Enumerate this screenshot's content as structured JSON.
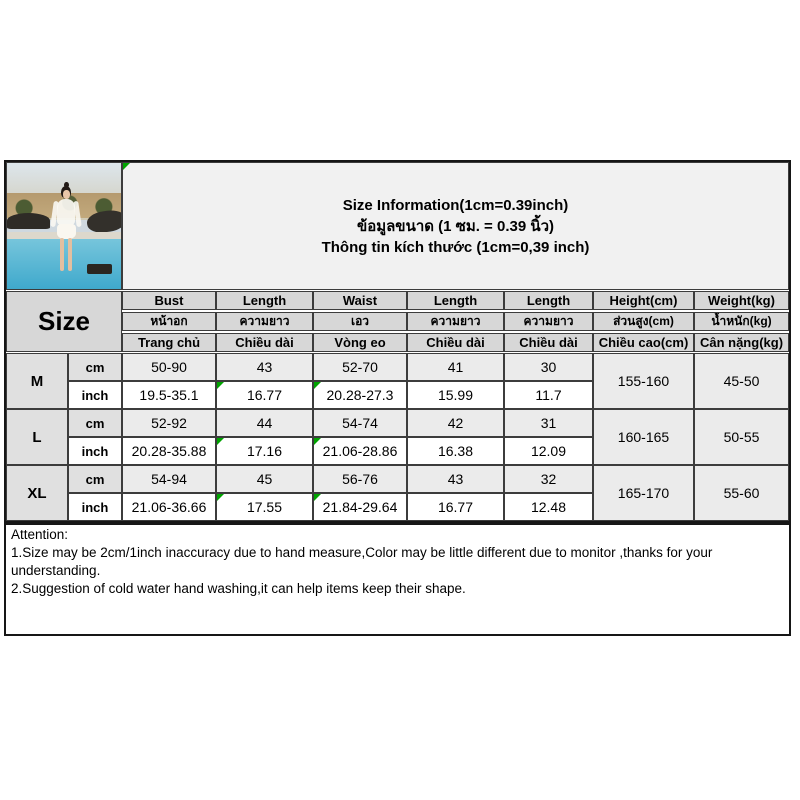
{
  "title": {
    "en": "Size Information(1cm=0.39inch)",
    "th": "ข้อมูลขนาด (1 ซม. = 0.39 นิ้ว)",
    "vi": "Thông tin kích thước (1cm=0,39 inch)"
  },
  "photo": {
    "description": "model wearing white sheer long-sleeve top and shorts standing beside resort pool"
  },
  "table": {
    "size_label": "Size",
    "units": [
      "cm",
      "inch"
    ],
    "columns": [
      {
        "en": "Bust",
        "th": "หน้าอก",
        "vi": "Trang chủ"
      },
      {
        "en": "Length",
        "th": "ความยาว",
        "vi": "Chiều dài"
      },
      {
        "en": "Waist",
        "th": "เอว",
        "vi": "Vòng eo"
      },
      {
        "en": "Length",
        "th": "ความยาว",
        "vi": "Chiều dài"
      },
      {
        "en": "Length",
        "th": "ความยาว",
        "vi": "Chiều dài"
      },
      {
        "en": "Height(cm)",
        "th": "ส่วนสูง(cm)",
        "vi": "Chiều cao(cm)"
      },
      {
        "en": "Weight(kg)",
        "th": "น้ำหนัก(kg)",
        "vi": "Cân nặng(kg)"
      }
    ],
    "rows": [
      {
        "size": "M",
        "cm": [
          "50-90",
          "43",
          "52-70",
          "41",
          "30"
        ],
        "inch": [
          "19.5-35.1",
          "16.77",
          "20.28-27.3",
          "15.99",
          "11.7"
        ],
        "height": "155-160",
        "weight": "45-50"
      },
      {
        "size": "L",
        "cm": [
          "52-92",
          "44",
          "54-74",
          "42",
          "31"
        ],
        "inch": [
          "20.28-35.88",
          "17.16",
          "21.06-28.86",
          "16.38",
          "12.09"
        ],
        "height": "160-165",
        "weight": "50-55"
      },
      {
        "size": "XL",
        "cm": [
          "54-94",
          "45",
          "56-76",
          "43",
          "32"
        ],
        "inch": [
          "21.06-36.66",
          "17.55",
          "21.84-29.64",
          "16.77",
          "12.48"
        ],
        "height": "165-170",
        "weight": "55-60"
      }
    ]
  },
  "attention": {
    "heading": "Attention:",
    "line1": "1.Size may be 2cm/1inch inaccuracy due to hand measure,Color may be little different due to monitor ,thanks for your understanding.",
    "line2": "2.Suggestion of cold water hand washing,it can help items keep their shape."
  },
  "icons": {
    "cell_flag": "green-corner-triangle"
  },
  "colors": {
    "header_bg": "#d7d7d7",
    "label_bg": "#e0e0e0",
    "band_bg": "#ebebeb",
    "title_bg": "#f1f1f1",
    "flag_green": "#00a300",
    "border": "#3c3c3c"
  }
}
